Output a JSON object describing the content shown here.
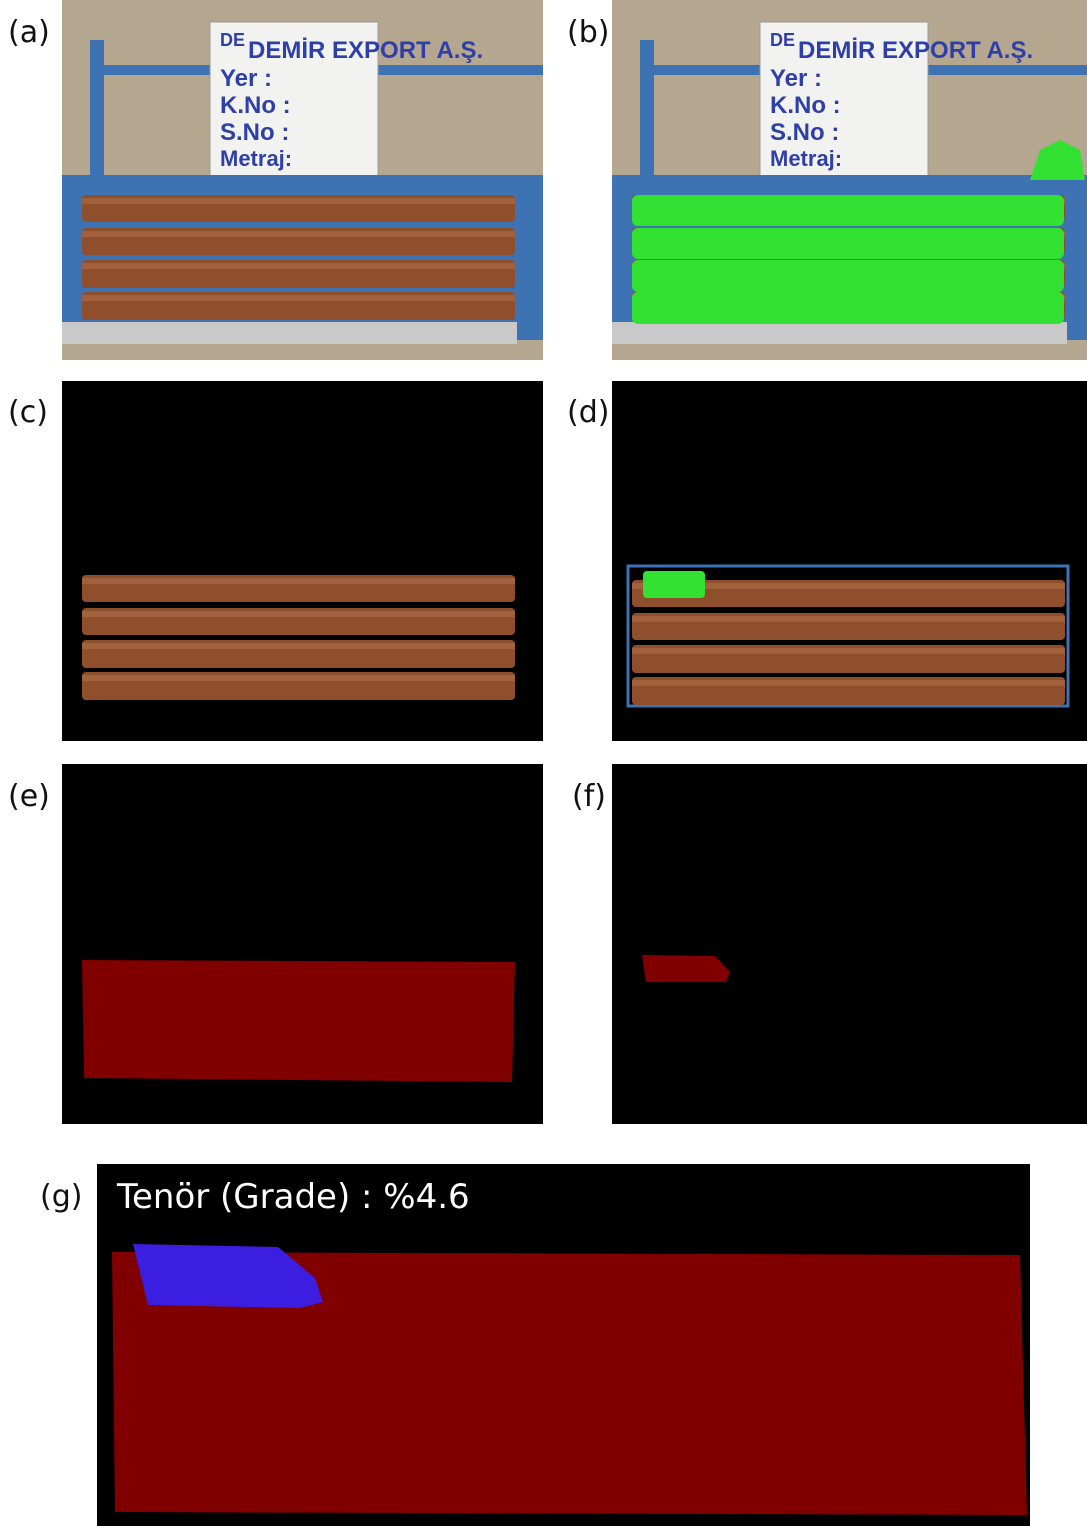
{
  "panels": [
    {
      "label": "(a)"
    },
    {
      "label": "(b)"
    },
    {
      "label": "(c)"
    },
    {
      "label": "(d)"
    },
    {
      "label": "(e)"
    },
    {
      "label": "(f)"
    },
    {
      "label": "(g)"
    }
  ],
  "sign": {
    "logo": "DE",
    "company": "DEMİR EXPORT A.Ş.",
    "fields": [
      "Yer :",
      "K.No :",
      "S.No :",
      "Metraj:"
    ]
  },
  "grade_text": "Tenör (Grade) : %4.6"
}
